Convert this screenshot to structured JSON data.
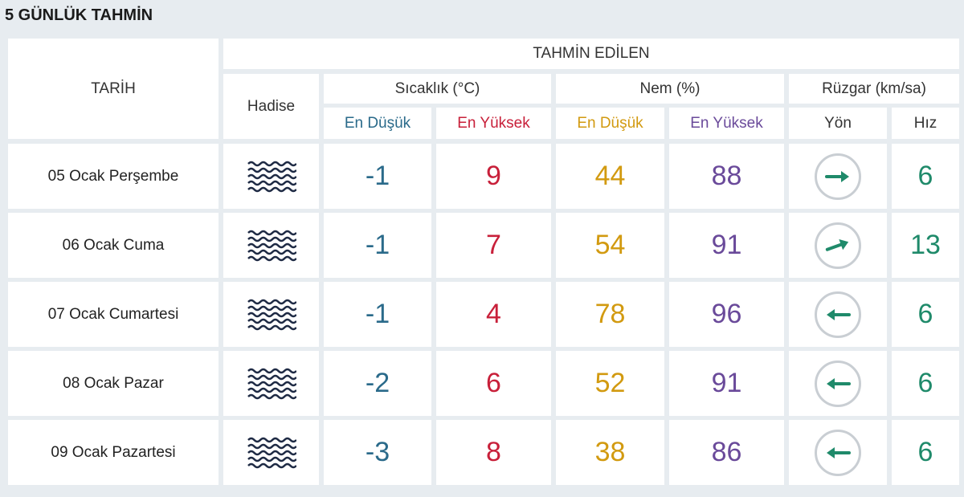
{
  "title": "5 GÜNLÜK TAHMİN",
  "header": {
    "tarih": "TARİH",
    "tahmin_edilen": "TAHMİN EDİLEN",
    "hadise": "Hadise",
    "sicaklik": "Sıcaklık (°C)",
    "nem": "Nem (%)",
    "ruzgar": "Rüzgar (km/sa)",
    "en_dusuk": "En Düşük",
    "en_yuksek": "En Yüksek",
    "yon": "Yön",
    "hiz": "Hız"
  },
  "colors": {
    "temp_min": "#2a6a8a",
    "temp_max": "#c8203a",
    "hum_min": "#d29a10",
    "hum_max": "#6a4a9a",
    "wind": "#1f8a6a"
  },
  "rows": [
    {
      "date": "05 Ocak Perşembe",
      "icon": "fog-icon",
      "t_min": "-1",
      "t_max": "9",
      "h_min": "44",
      "h_max": "88",
      "wind_dir": "east",
      "wind_speed": "6"
    },
    {
      "date": "06 Ocak Cuma",
      "icon": "fog-icon",
      "t_min": "-1",
      "t_max": "7",
      "h_min": "54",
      "h_max": "91",
      "wind_dir": "east-northeast",
      "wind_speed": "13"
    },
    {
      "date": "07 Ocak Cumartesi",
      "icon": "fog-icon",
      "t_min": "-1",
      "t_max": "4",
      "h_min": "78",
      "h_max": "96",
      "wind_dir": "west",
      "wind_speed": "6"
    },
    {
      "date": "08 Ocak Pazar",
      "icon": "fog-icon",
      "t_min": "-2",
      "t_max": "6",
      "h_min": "52",
      "h_max": "91",
      "wind_dir": "west",
      "wind_speed": "6"
    },
    {
      "date": "09 Ocak Pazartesi",
      "icon": "fog-icon",
      "t_min": "-3",
      "t_max": "8",
      "h_min": "38",
      "h_max": "86",
      "wind_dir": "west",
      "wind_speed": "6"
    }
  ]
}
